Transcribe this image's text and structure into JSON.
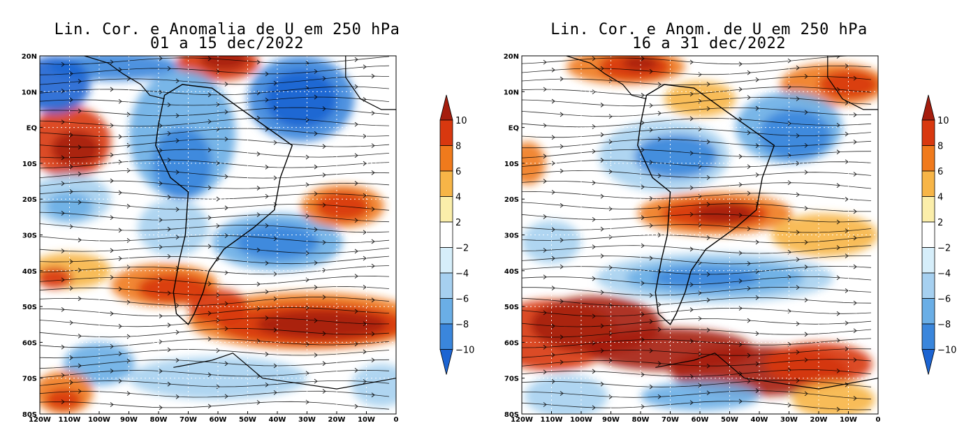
{
  "panels": [
    {
      "title_line1": "Lin. Cor. e Anomalia de U em 250 hPa",
      "title_line2": "01 a 15 dec/2022",
      "anomaly_pattern": "period-1"
    },
    {
      "title_line1": "Lin. Cor. e Anom. de U em 250 hPa",
      "title_line2": "16 a 31 dec/2022",
      "anomaly_pattern": "period-2"
    }
  ],
  "lat_labels": [
    "20N",
    "10N",
    "EQ",
    "10S",
    "20S",
    "30S",
    "40S",
    "50S",
    "60S",
    "70S",
    "80S"
  ],
  "lon_labels": [
    "120W",
    "110W",
    "100W",
    "90W",
    "80W",
    "70W",
    "60W",
    "50W",
    "40W",
    "30W",
    "20W",
    "10W",
    "0"
  ],
  "colorbar": {
    "labels": [
      "10",
      "8",
      "6",
      "4",
      "2",
      "−2",
      "−4",
      "−6",
      "−8",
      "−10"
    ],
    "colors": [
      "#a51d0e",
      "#d8380f",
      "#f07a1c",
      "#f7b547",
      "#fbeeaa",
      "#ffffff",
      "#d6eefa",
      "#a6d0f0",
      "#6aaee6",
      "#3a86dc",
      "#1c64d2"
    ]
  },
  "palette": {
    "land_outline": "#000000",
    "streamline": "#000000",
    "grid": "#ffffff"
  }
}
